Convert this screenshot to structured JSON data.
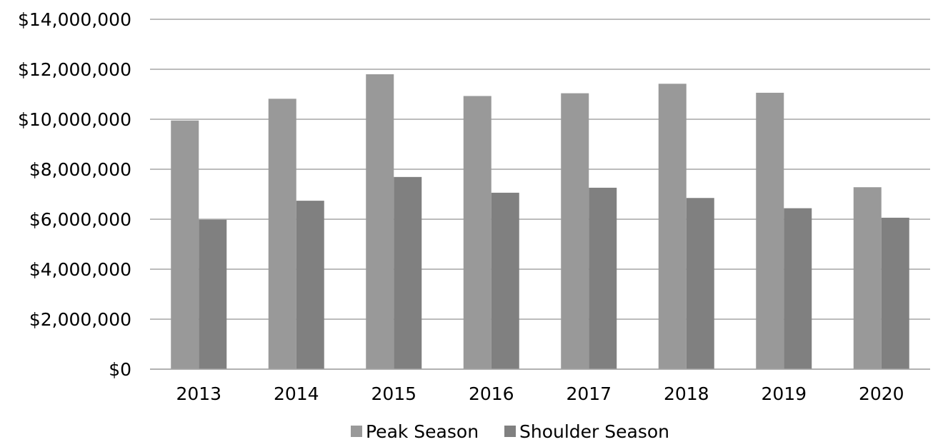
{
  "chart_data": {
    "type": "bar",
    "categories": [
      "2013",
      "2014",
      "2015",
      "2016",
      "2017",
      "2018",
      "2019",
      "2020"
    ],
    "series": [
      {
        "name": "Peak Season",
        "color": "#999999",
        "values": [
          9950000,
          10820000,
          11800000,
          10930000,
          11040000,
          11420000,
          11060000,
          7280000
        ]
      },
      {
        "name": "Shoulder Season",
        "color": "#808080",
        "values": [
          5980000,
          6740000,
          7690000,
          7060000,
          7260000,
          6850000,
          6440000,
          6060000
        ]
      }
    ],
    "ylim": [
      0,
      14000000
    ],
    "y_ticks": [
      0,
      2000000,
      4000000,
      6000000,
      8000000,
      10000000,
      12000000,
      14000000
    ],
    "y_tick_labels": [
      "$0",
      "$2,000,000",
      "$4,000,000",
      "$6,000,000",
      "$8,000,000",
      "$10,000,000",
      "$12,000,000",
      "$14,000,000"
    ],
    "grid": true,
    "legend": "bottom",
    "title": "",
    "xlabel": "",
    "ylabel": ""
  }
}
